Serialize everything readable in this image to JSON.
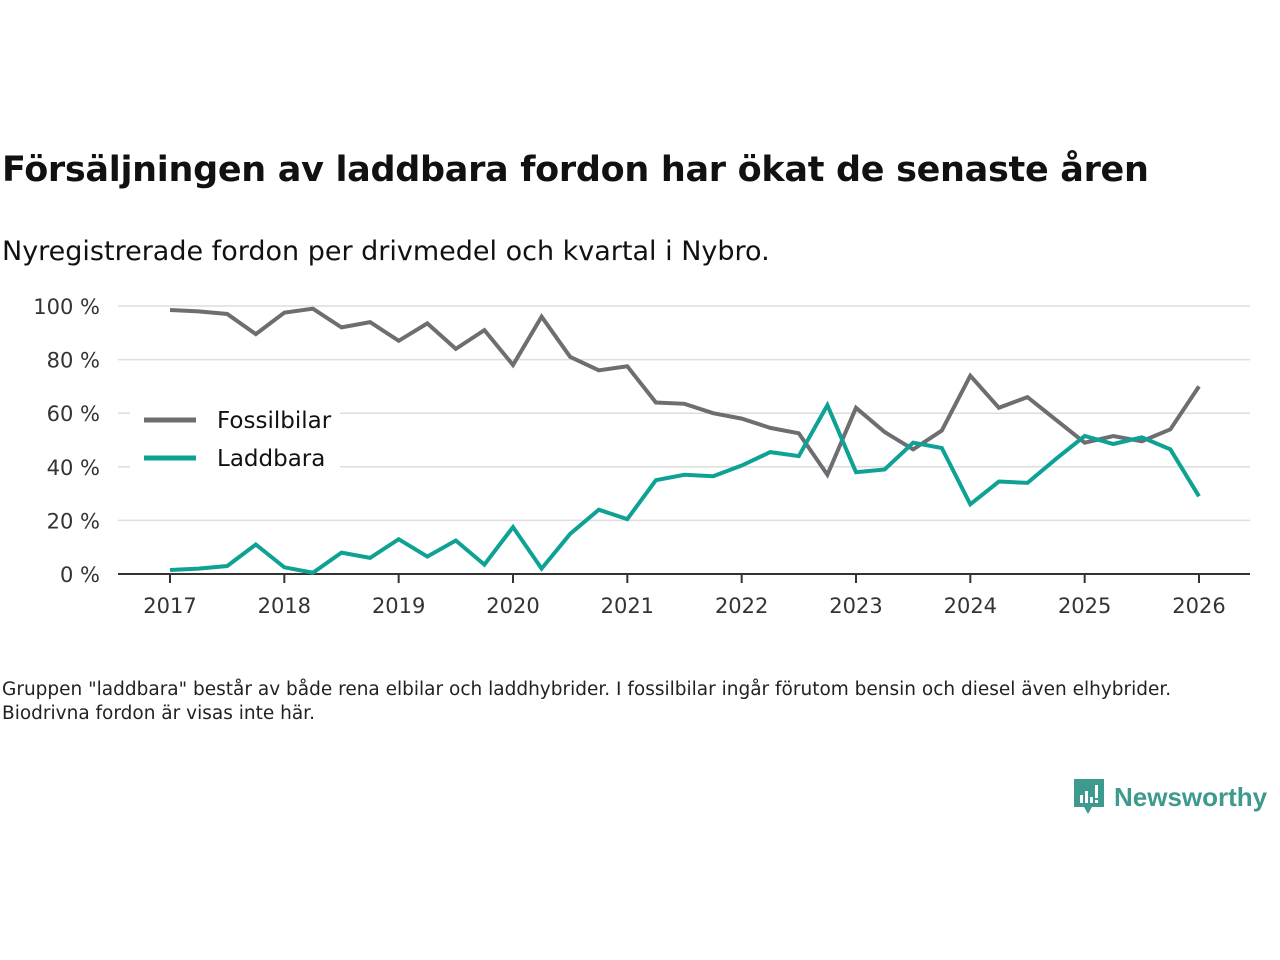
{
  "title": "Försäljningen av laddbara fordon har ökat de senaste åren",
  "subtitle": "Nyregistrerade fordon per drivmedel och kvartal i Nybro.",
  "note": "Gruppen \"laddbara\" består av både rena elbilar och laddhybrider. I fossilbilar ingår förutom bensin och diesel även elhybrider. Biodrivna fordon är visas inte här.",
  "logo": "Newsworthy",
  "colors": {
    "fossil": "#6e6d72",
    "laddbara": "#0ea294",
    "grid": "#dddddd",
    "axis": "#333333",
    "brand": "#3e9a8e"
  },
  "chart_data": {
    "type": "line",
    "title": "Försäljningen av laddbara fordon har ökat de senaste åren",
    "xlabel": "",
    "ylabel": "",
    "ylim": [
      0,
      100
    ],
    "xlim": [
      2016.6,
      2026.45
    ],
    "yticks": [
      0,
      20,
      40,
      60,
      80,
      100
    ],
    "ytick_labels": [
      "0 %",
      "20 %",
      "40 %",
      "60 %",
      "80 %",
      "100 %"
    ],
    "xticks": [
      2017,
      2018,
      2019,
      2020,
      2021,
      2022,
      2023,
      2024,
      2025,
      2026
    ],
    "xtick_labels": [
      "2017",
      "2018",
      "2019",
      "2020",
      "2021",
      "2022",
      "2023",
      "2024",
      "2025",
      "2026"
    ],
    "grid": true,
    "legend": "left-middle",
    "x_start": 2017,
    "x_step": 0.25,
    "series": [
      {
        "name": "Fossilbilar",
        "color": "#6e6d72",
        "values": [
          98.5,
          98,
          97,
          89.5,
          97.5,
          99,
          92,
          94,
          87,
          93.5,
          84,
          91,
          78,
          96,
          81,
          76,
          77.5,
          64,
          63.5,
          60,
          58,
          54.5,
          52.5,
          37,
          62,
          53,
          46.5,
          53.5,
          74,
          62,
          66,
          57.5,
          49,
          51.5,
          49.5,
          54,
          70
        ]
      },
      {
        "name": "Laddbara",
        "color": "#0ea294",
        "values": [
          1.5,
          2,
          3,
          11,
          2.5,
          0.5,
          8,
          6,
          13,
          6.5,
          12.5,
          3.5,
          17.5,
          2,
          15,
          24,
          20.5,
          35,
          37,
          36.5,
          40.5,
          45.5,
          44,
          63,
          38,
          39,
          49,
          47,
          26,
          34.5,
          34,
          43,
          51.5,
          48.5,
          51,
          46.5,
          29
        ]
      }
    ]
  }
}
